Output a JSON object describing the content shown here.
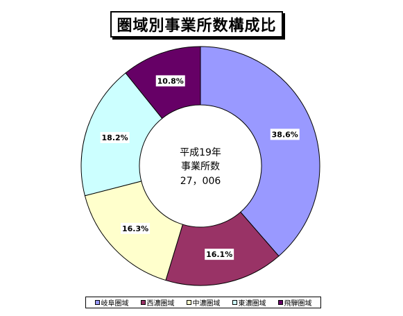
{
  "chart_data": {
    "type": "pie",
    "title": "圏域別事業所数構成比",
    "center_lines": [
      "平成19年",
      "事業所数",
      "27，006"
    ],
    "categories": [
      "岐阜圏域",
      "西濃圏域",
      "中濃圏域",
      "東濃圏域",
      "飛騨圏域"
    ],
    "values": [
      38.6,
      16.1,
      16.3,
      18.2,
      10.8
    ],
    "labels": [
      "38.6%",
      "16.1%",
      "16.3%",
      "18.2%",
      "10.8%"
    ],
    "colors": [
      "#9999ff",
      "#993366",
      "#ffffcc",
      "#ccffff",
      "#660066"
    ],
    "legend_position": "bottom"
  }
}
